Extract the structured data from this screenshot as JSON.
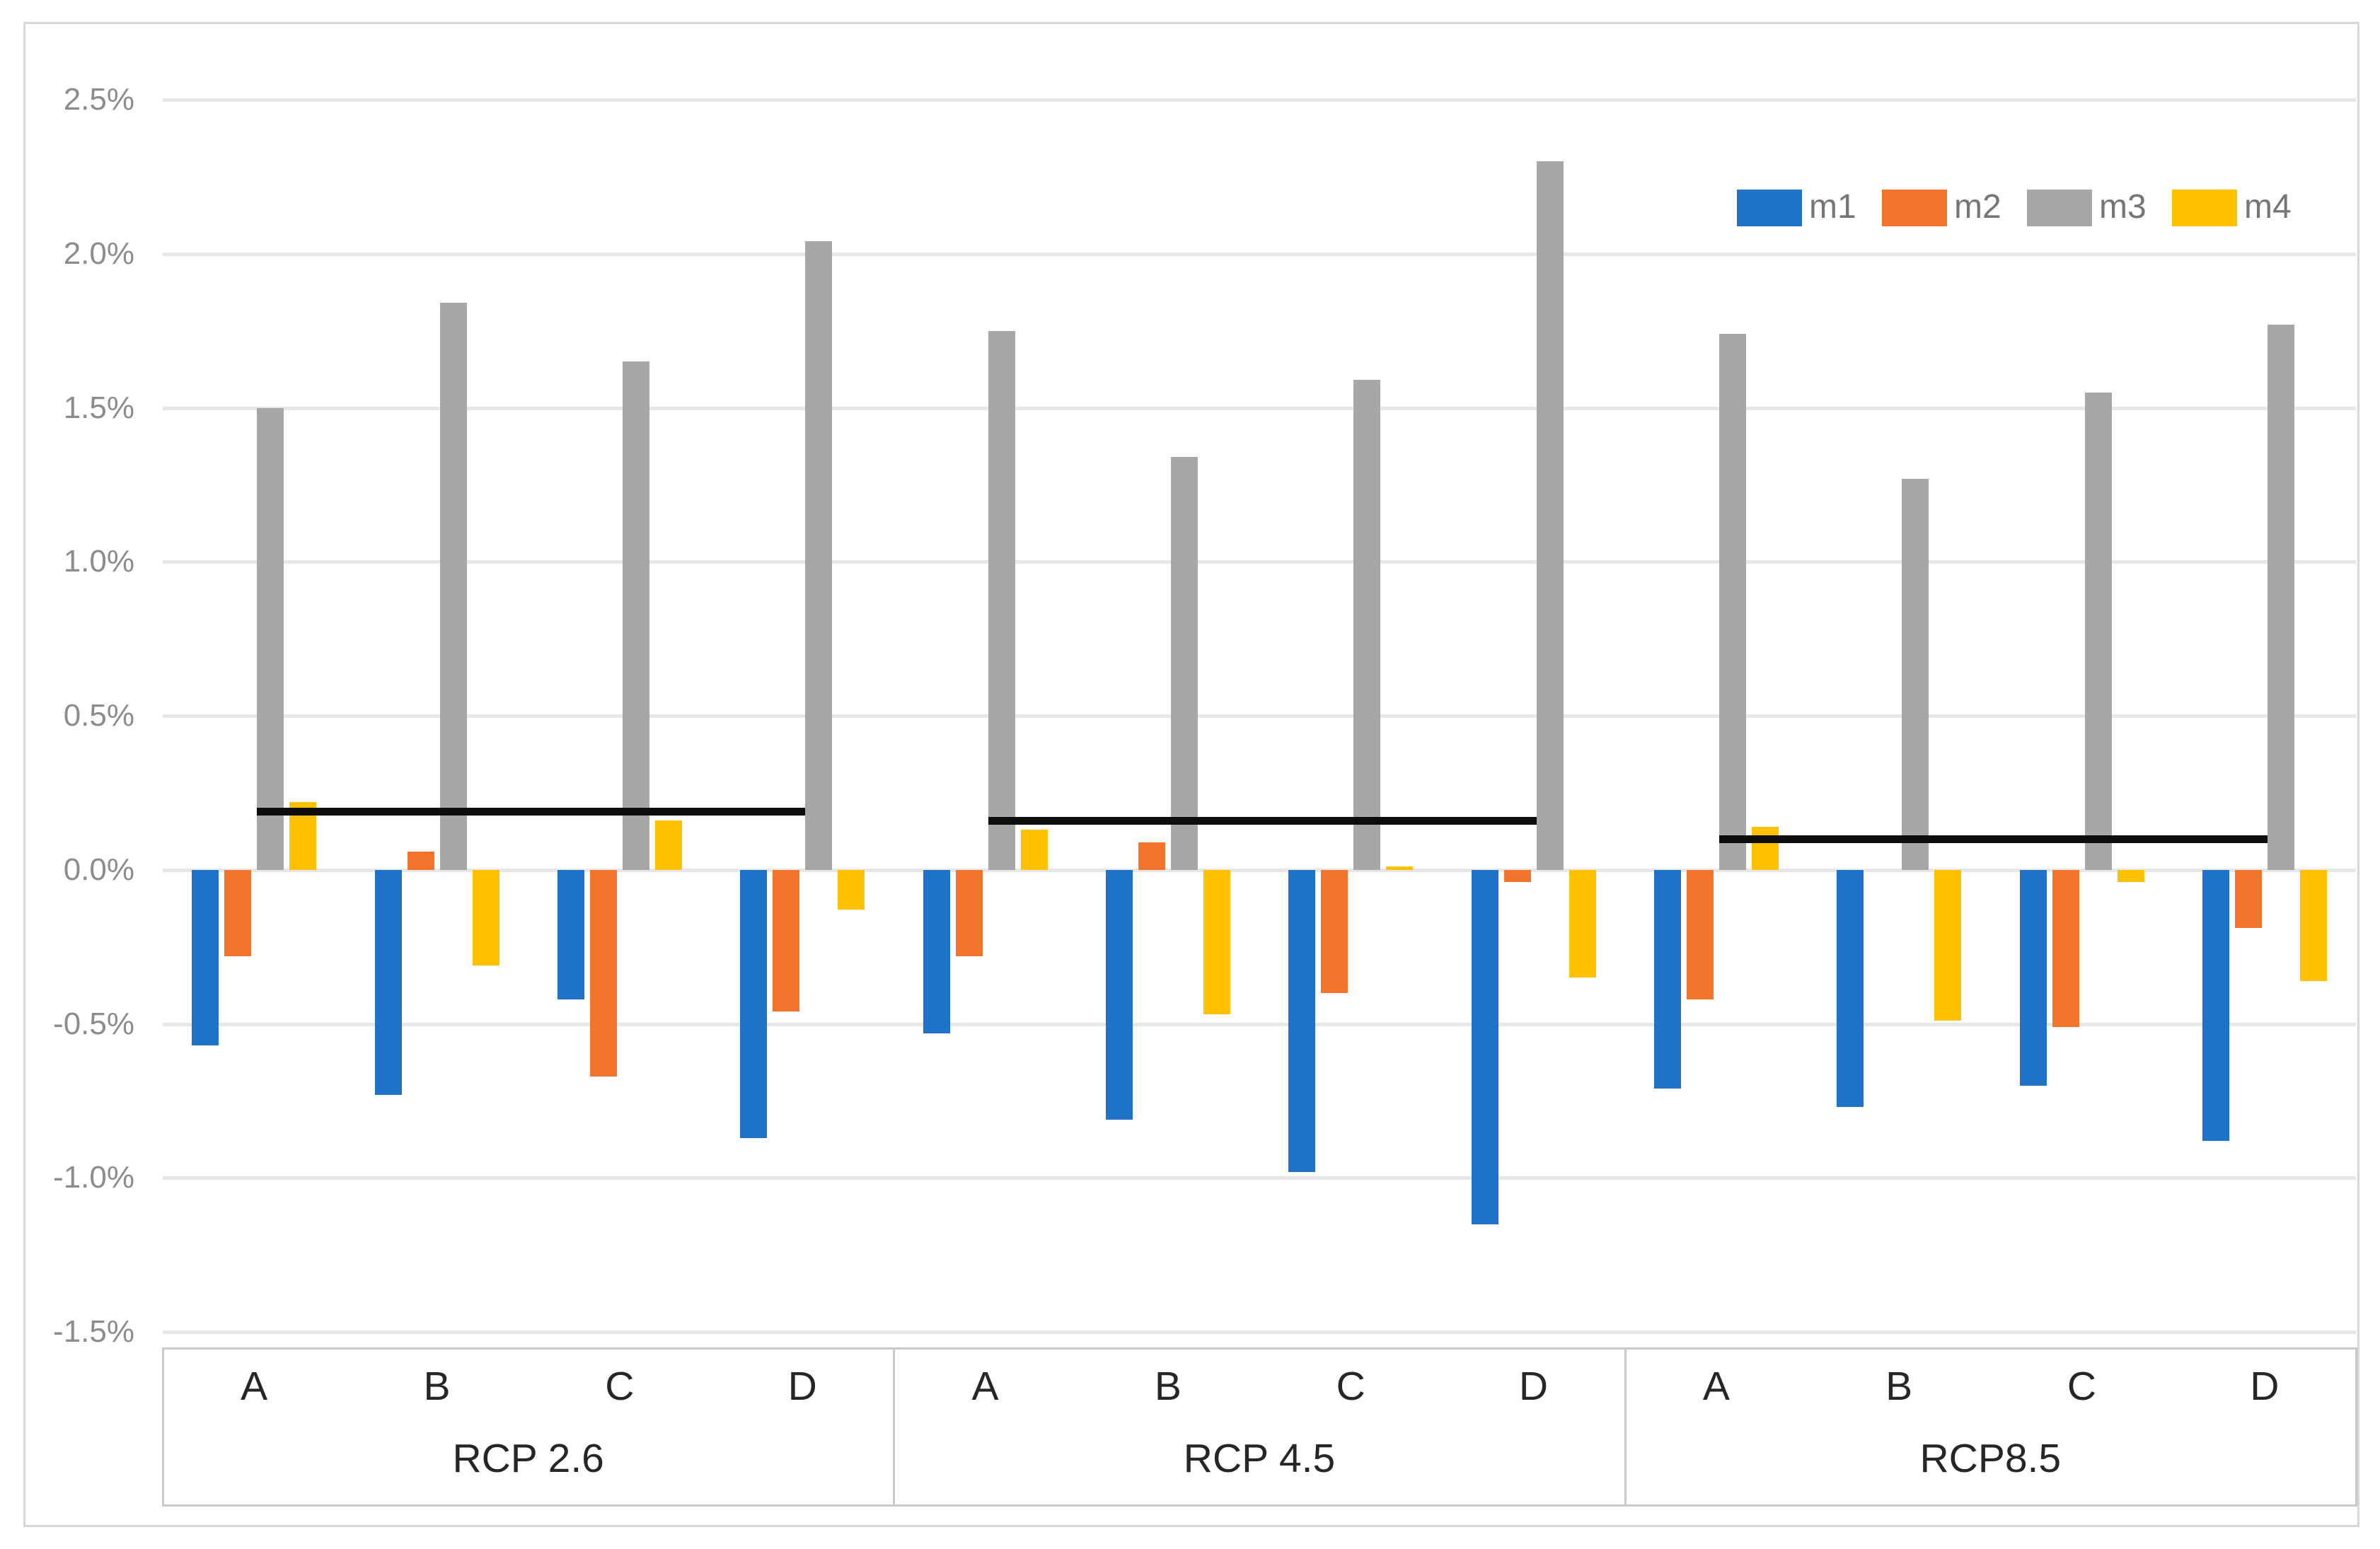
{
  "figure": {
    "background_color": "#FFFFFF",
    "border_color": "#D7D7D7"
  },
  "legend": {
    "position": "top-right",
    "items": [
      {
        "label": "m1",
        "color": "#1E73C8"
      },
      {
        "label": "m2",
        "color": "#F2752B"
      },
      {
        "label": "m3",
        "color": "#A7A7A7"
      },
      {
        "label": "m4",
        "color": "#FFC000"
      }
    ]
  },
  "chart_data": {
    "type": "bar",
    "title": "",
    "xlabel": "",
    "ylabel": "",
    "grid": true,
    "gridline_color": "#E7E7E7",
    "y_axis": {
      "min": -1.5,
      "max": 2.5,
      "step": 0.5,
      "tick_labels": [
        "2.5%",
        "2.0%",
        "1.5%",
        "1.0%",
        "0.5%",
        "0.0%",
        "-0.5%",
        "-1.0%",
        "-1.5%"
      ]
    },
    "series_names": [
      "m1",
      "m2",
      "m3",
      "m4"
    ],
    "series_colors": {
      "m1": "#1E73C8",
      "m2": "#F2752B",
      "m3": "#A7A7A7",
      "m4": "#FFC000"
    },
    "reference_line_color": "#0D0D0D",
    "groups": [
      {
        "label": "RCP 2.6",
        "categories": [
          "A",
          "B",
          "C",
          "D"
        ],
        "series": {
          "m1": [
            -0.57,
            -0.73,
            -0.42,
            -0.87
          ],
          "m2": [
            -0.28,
            0.06,
            -0.67,
            -0.46
          ],
          "m3": [
            1.5,
            1.84,
            1.65,
            2.04
          ],
          "m4": [
            0.22,
            -0.31,
            0.16,
            -0.13
          ]
        },
        "reference_line": 0.19
      },
      {
        "label": "RCP 4.5",
        "categories": [
          "A",
          "B",
          "C",
          "D"
        ],
        "series": {
          "m1": [
            -0.53,
            -0.81,
            -0.98,
            -1.15
          ],
          "m2": [
            -0.28,
            0.09,
            -0.4,
            -0.04
          ],
          "m3": [
            1.75,
            1.34,
            1.59,
            2.3
          ],
          "m4": [
            0.13,
            -0.47,
            0.01,
            -0.35
          ]
        },
        "reference_line": 0.16
      },
      {
        "label": "RCP8.5",
        "categories": [
          "A",
          "B",
          "C",
          "D"
        ],
        "series": {
          "m1": [
            -0.71,
            -0.77,
            -0.7,
            -0.88
          ],
          "m2": [
            -0.42,
            0.0,
            -0.51,
            -0.19
          ],
          "m3": [
            1.74,
            1.27,
            1.55,
            1.77
          ],
          "m4": [
            0.14,
            -0.49,
            -0.04,
            -0.36
          ]
        },
        "reference_line": 0.1
      }
    ]
  }
}
